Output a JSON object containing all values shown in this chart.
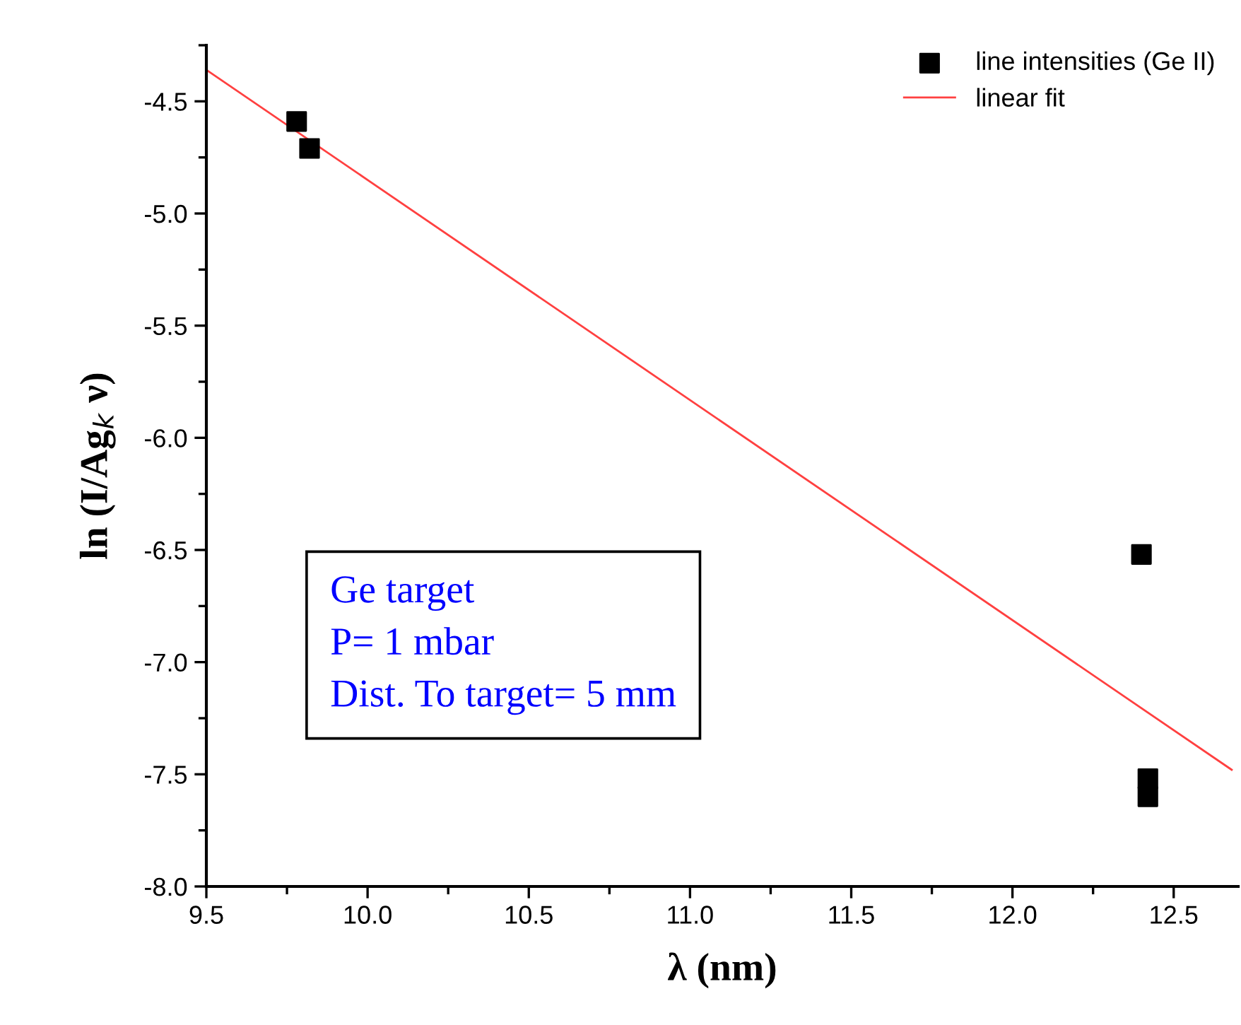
{
  "chart_data": {
    "type": "scatter",
    "xlabel": "λ (nm)",
    "ylabel": "ln (I/Ag$_{k}$ ν)",
    "xlim": [
      9.5,
      12.7
    ],
    "ylim": [
      -8.0,
      -4.25
    ],
    "xticks": [
      9.5,
      {
        "value": 10,
        "label": "10.0"
      },
      10.5,
      {
        "value": 11,
        "label": "11.0"
      },
      11.5,
      {
        "value": 12,
        "label": "12.0"
      },
      12.5
    ],
    "yticks": [
      {
        "value": -8,
        "label": "-8.0"
      },
      -7.5,
      {
        "value": -7,
        "label": "-7.0"
      },
      -6.5,
      {
        "value": -6,
        "label": "-6.0"
      },
      -5.5,
      {
        "value": -5,
        "label": "-5.0"
      },
      -4.5
    ],
    "legend": "top right",
    "grid": false,
    "series": [
      {
        "name": "line intensities (Ge II)",
        "marker": "square",
        "color": "#000000",
        "x": [
          9.78,
          9.82,
          12.4,
          12.42,
          12.42
        ],
        "values": [
          -4.59,
          -4.71,
          -6.52,
          -7.52,
          -7.6
        ]
      },
      {
        "name": "linear fit",
        "type": "line",
        "marker": "none",
        "line_style": "solid",
        "color": "#ff4040",
        "x": [
          9.5,
          12.68
        ],
        "values": [
          -4.36,
          -7.48
        ]
      }
    ],
    "annotations": [
      "Ge target",
      "P= 1 mbar",
      "Dist. To target= 5 mm"
    ]
  }
}
